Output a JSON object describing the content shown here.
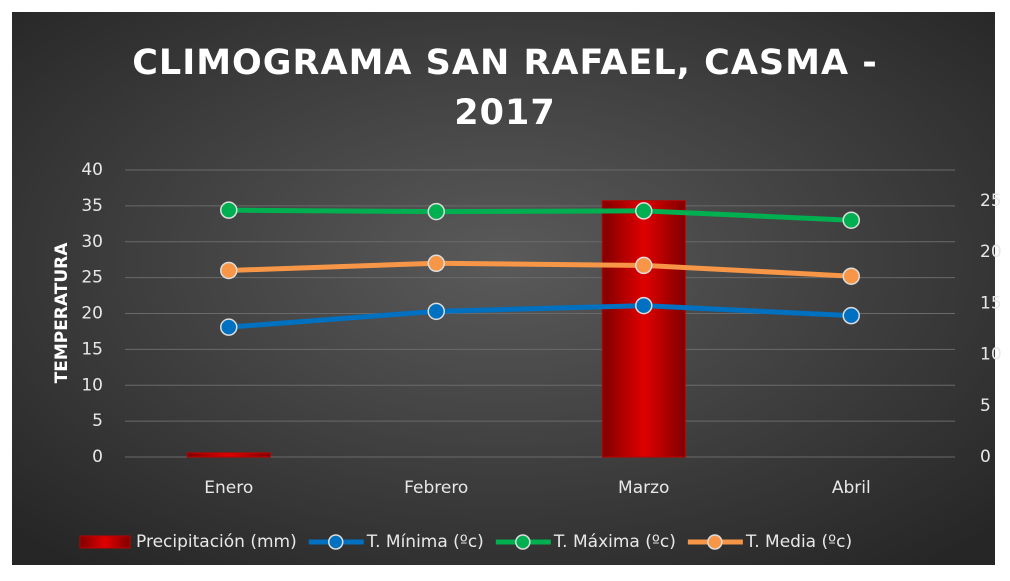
{
  "chart_data": {
    "type": "bar+line",
    "title": "CLIMOGRAMA SAN RAFAEL, CASMA - 2017",
    "y_axis_label": "TEMPERATURA",
    "categories": [
      "Enero",
      "Febrero",
      "Marzo",
      "Abril"
    ],
    "ylim": [
      0,
      40
    ],
    "yticks": [
      0,
      5,
      10,
      15,
      20,
      25,
      30,
      35,
      40
    ],
    "y2lim": [
      0,
      28
    ],
    "y2ticks": [
      0,
      5,
      10,
      15,
      20,
      25
    ],
    "grid": true,
    "legend": "bottom",
    "series": [
      {
        "name": "Precipitación (mm)",
        "type": "bar",
        "axis": "y2",
        "color": "#c00000",
        "values": [
          0.4,
          0,
          25,
          0
        ]
      },
      {
        "name": "T. Mínima (ºc)",
        "type": "line",
        "color": "#0070c0",
        "values": [
          18.1,
          20.3,
          21.1,
          19.7
        ]
      },
      {
        "name": "T. Máxima (ºc)",
        "type": "line",
        "color": "#00b050",
        "values": [
          34.4,
          34.2,
          34.3,
          33.0
        ]
      },
      {
        "name": "T. Media (ºc)",
        "type": "line",
        "color": "#f79646",
        "values": [
          26.0,
          27.0,
          26.7,
          25.2
        ]
      }
    ]
  }
}
